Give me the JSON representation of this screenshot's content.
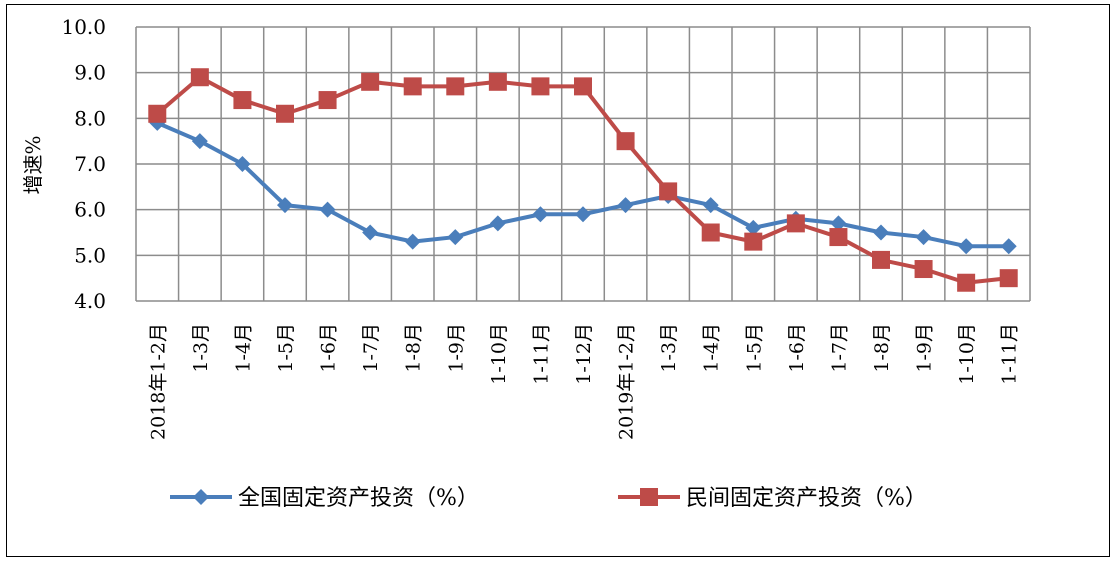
{
  "chart_data": {
    "type": "line",
    "title": "",
    "xlabel": "",
    "ylabel": "增速%",
    "ylim": [
      4.0,
      10.0
    ],
    "yticks": [
      "4.0",
      "5.0",
      "6.0",
      "7.0",
      "8.0",
      "9.0",
      "10.0"
    ],
    "grid": true,
    "legend_position": "bottom",
    "categories": [
      "2018年1-2月",
      "1-3月",
      "1-4月",
      "1-5月",
      "1-6月",
      "1-7月",
      "1-8月",
      "1-9月",
      "1-10月",
      "1-11月",
      "1-12月",
      "2019年1-2月",
      "1-3月",
      "1-4月",
      "1-5月",
      "1-6月",
      "1-7月",
      "1-8月",
      "1-9月",
      "1-10月",
      "1-11月"
    ],
    "series": [
      {
        "name": "全国固定资产投资（%）",
        "color": "#4a7ebb",
        "marker": "diamond",
        "values": [
          7.9,
          7.5,
          7.0,
          6.1,
          6.0,
          5.5,
          5.3,
          5.4,
          5.7,
          5.9,
          5.9,
          6.1,
          6.3,
          6.1,
          5.6,
          5.8,
          5.7,
          5.5,
          5.4,
          5.2,
          5.2
        ]
      },
      {
        "name": "民间固定资产投资（%）",
        "color": "#be4b48",
        "marker": "square",
        "values": [
          8.1,
          8.9,
          8.4,
          8.1,
          8.4,
          8.8,
          8.7,
          8.7,
          8.8,
          8.7,
          8.7,
          7.5,
          6.4,
          5.5,
          5.3,
          5.7,
          5.4,
          4.9,
          4.7,
          4.4,
          4.5
        ]
      }
    ]
  }
}
